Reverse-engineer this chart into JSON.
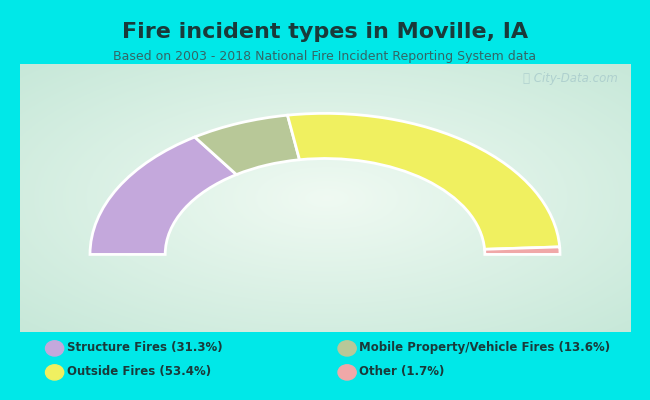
{
  "title": "Fire incident types in Moville, IA",
  "subtitle": "Based on 2003 - 2018 National Fire Incident Reporting System data",
  "watermark": "ⓘ City-Data.com",
  "background_outer": "#00e8e8",
  "background_chart_corner": "#c8e8d8",
  "background_chart_center": "#f0faf5",
  "segments": [
    {
      "label": "Structure Fires (31.3%)",
      "value": 31.3,
      "color": "#c4a8dc"
    },
    {
      "label": "Mobile Property/Vehicle Fires (13.6%)",
      "value": 13.6,
      "color": "#b8c898"
    },
    {
      "label": "Outside Fires (53.4%)",
      "value": 53.4,
      "color": "#f0f060"
    },
    {
      "label": "Other (1.7%)",
      "value": 1.7,
      "color": "#f0a8a8"
    }
  ],
  "legend_items": [
    {
      "label": "Structure Fires (31.3%)",
      "color": "#c4a8dc"
    },
    {
      "label": "Mobile Property/Vehicle Fires (13.6%)",
      "color": "#b8c898"
    },
    {
      "label": "Outside Fires (53.4%)",
      "color": "#f0f060"
    },
    {
      "label": "Other (1.7%)",
      "color": "#f0a8a8"
    }
  ],
  "title_fontsize": 16,
  "subtitle_fontsize": 9,
  "donut_width": 0.32,
  "figsize": [
    6.5,
    4.0
  ],
  "dpi": 100
}
